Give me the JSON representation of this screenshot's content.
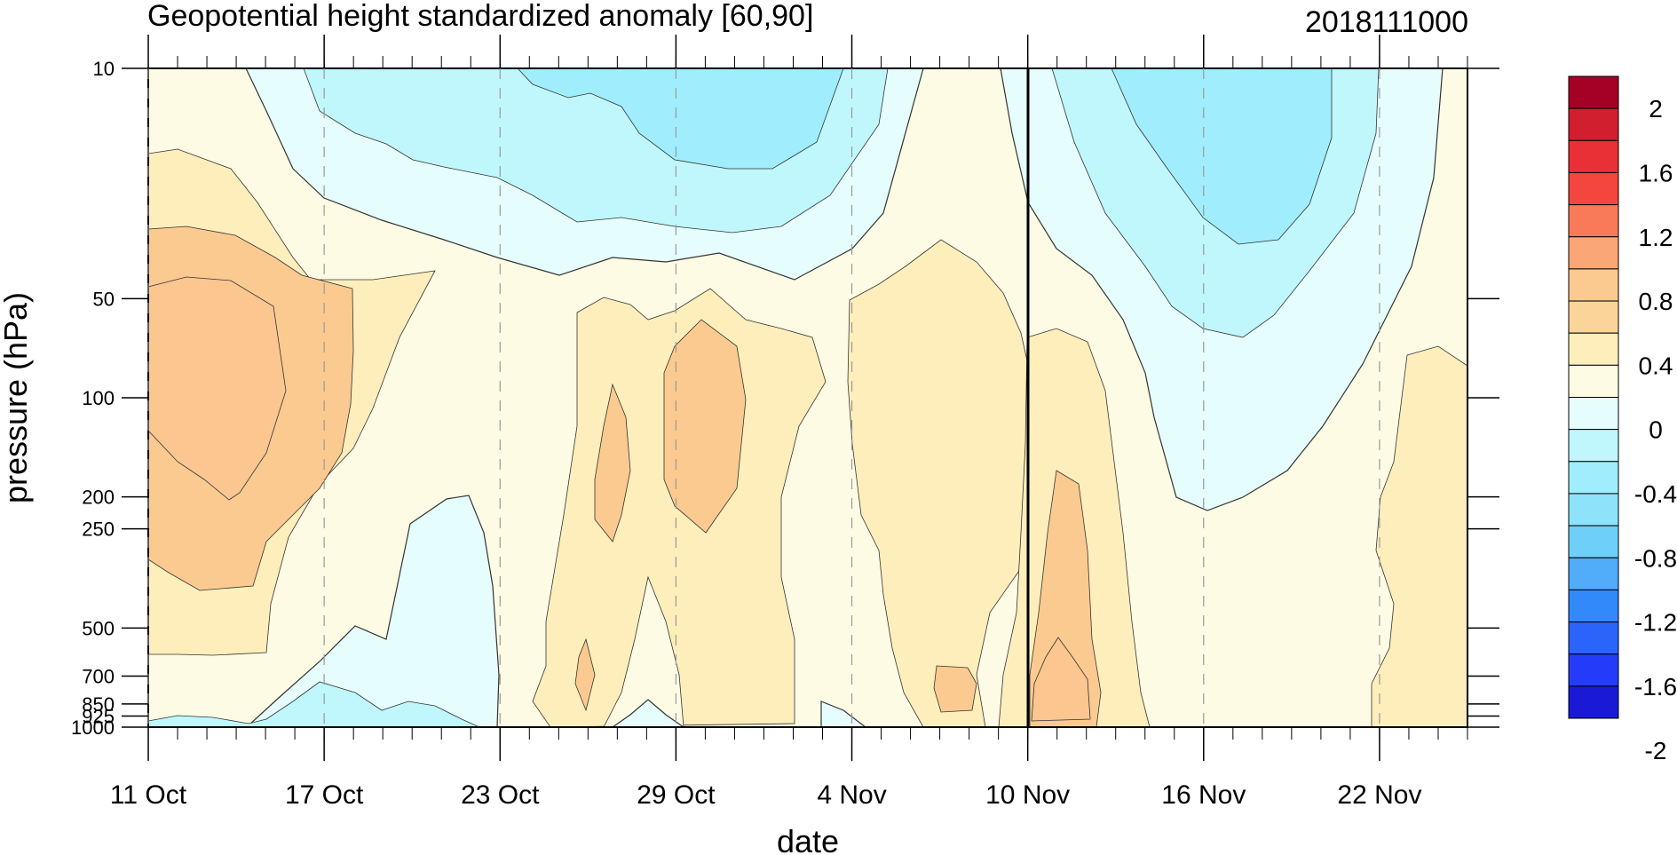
{
  "chart_data": {
    "type": "heatmap",
    "title": "Geopotential height standardized anomaly [60,90]",
    "date_code": "2018111000",
    "xlabel": "date",
    "ylabel": "pressure (hPa)",
    "x_ticks": [
      "11 Oct",
      "17 Oct",
      "23 Oct",
      "29 Oct",
      "4 Nov",
      "10 Nov",
      "16 Nov",
      "22 Nov"
    ],
    "x_tick_days": [
      0,
      6,
      12,
      18,
      24,
      30,
      36,
      42
    ],
    "x_range_days": [
      0,
      45
    ],
    "y_ticks": [
      10,
      50,
      100,
      200,
      250,
      500,
      700,
      850,
      925,
      1000
    ],
    "y_range": [
      10,
      1000
    ],
    "y_scale": "log",
    "current_date_line": "10 Nov",
    "colorbar": {
      "labels": [
        "2",
        "1.6",
        "1.2",
        "0.8",
        "0.4",
        "0",
        "-0.4",
        "-0.8",
        "-1.2",
        "-1.6",
        "-2"
      ],
      "bins": [
        {
          "range": "1.8 to 2.0",
          "color": "#a50026"
        },
        {
          "range": "1.6 to 1.8",
          "color": "#d21f2e"
        },
        {
          "range": "1.4 to 1.6",
          "color": "#e83036"
        },
        {
          "range": "1.2 to 1.4",
          "color": "#f4453e"
        },
        {
          "range": "1.0 to 1.2",
          "color": "#f87a58"
        },
        {
          "range": "0.8 to 1.0",
          "color": "#fba676"
        },
        {
          "range": "0.6 to 0.8",
          "color": "#fbca90"
        },
        {
          "range": "0.4 to 0.6",
          "color": "#fbd49a"
        },
        {
          "range": "0.2 to 0.4",
          "color": "#fdeebb"
        },
        {
          "range": "0 to 0.2",
          "color": "#fefbe5"
        },
        {
          "range": "-0.2 to 0",
          "color": "#e6fdfd"
        },
        {
          "range": "-0.4 to -0.2",
          "color": "#bff7fd"
        },
        {
          "range": "-0.6 to -0.4",
          "color": "#a0eefd"
        },
        {
          "range": "-0.8 to -0.6",
          "color": "#8ee3fb"
        },
        {
          "range": "-1.0 to -0.8",
          "color": "#6ed0f8"
        },
        {
          "range": "-1.2 to -1.0",
          "color": "#51acf9"
        },
        {
          "range": "-1.4 to -1.2",
          "color": "#3289f9"
        },
        {
          "range": "-1.6 to -1.4",
          "color": "#2b64fa"
        },
        {
          "range": "-1.8 to -1.6",
          "color": "#243cfa"
        },
        {
          "range": "-2.0 to -1.8",
          "color": "#1a1ad6"
        }
      ]
    }
  }
}
